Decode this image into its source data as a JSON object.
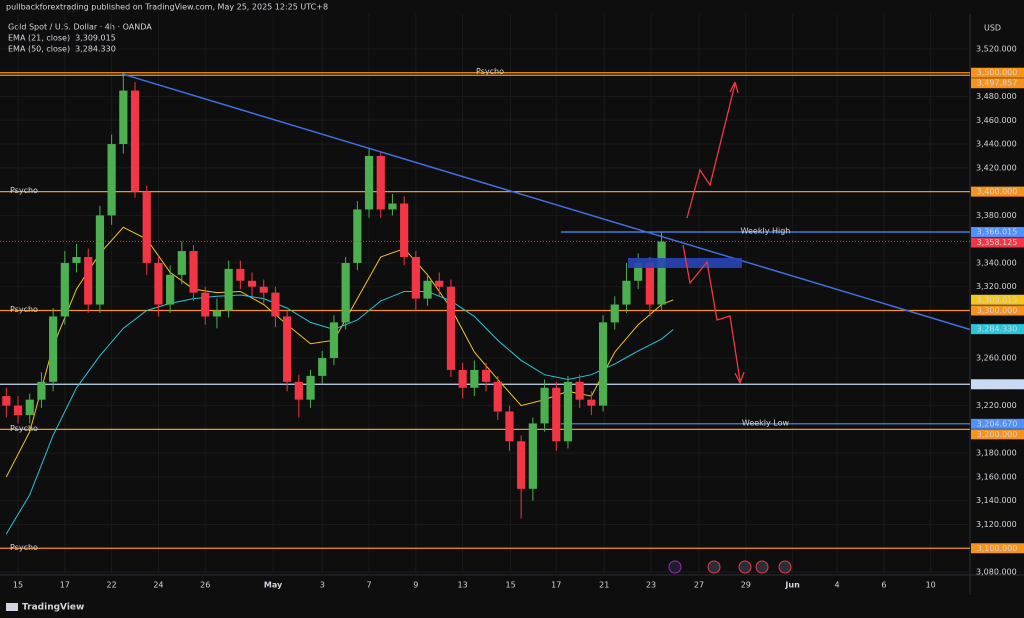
{
  "header": {
    "attribution": "pullbackforextrading published on TradingView.com, May 25, 2025 12:25 UTC+8"
  },
  "footer": {
    "brand": "TradingView"
  },
  "chart_data": {
    "type": "candlestick",
    "title": "Gold Spot / U.S. Dollar · 4h · OANDA",
    "y_axis_label": "USD",
    "up_color": "#4caf50",
    "down_color": "#f23645",
    "grid": true,
    "x": [
      -0.5,
      0,
      0.5,
      1,
      1.5,
      2,
      2.5,
      3,
      3.5,
      4,
      4.5,
      5,
      5.5,
      6,
      6.5,
      7,
      7.5,
      8,
      8.5,
      9,
      9.5,
      10,
      10.5,
      11,
      11.5,
      12,
      12.5,
      13,
      13.5,
      14,
      14.5,
      15,
      15.5,
      16,
      16.5,
      17,
      17.5,
      18,
      18.5,
      19,
      19.5,
      20,
      20.5,
      21,
      21.5,
      22,
      22.5,
      23,
      23.5,
      24,
      24.5,
      25,
      25.5,
      26,
      26.5,
      27,
      27.5
    ],
    "open": [
      3228,
      3220,
      3212,
      3225,
      3240,
      3295,
      3340,
      3345,
      3305,
      3380,
      3440,
      3485,
      3400,
      3340,
      3305,
      3330,
      3350,
      3315,
      3295,
      3300,
      3335,
      3325,
      3320,
      3315,
      3295,
      3240,
      3225,
      3245,
      3260,
      3290,
      3340,
      3385,
      3430,
      3385,
      3390,
      3345,
      3310,
      3325,
      3320,
      3250,
      3235,
      3250,
      3240,
      3215,
      3190,
      3150,
      3205,
      3235,
      3190,
      3240,
      3225,
      3220,
      3290,
      3305,
      3325,
      3340,
      3305
    ],
    "high": [
      3235,
      3228,
      3230,
      3248,
      3302,
      3350,
      3356,
      3352,
      3388,
      3448,
      3500,
      3492,
      3405,
      3346,
      3338,
      3358,
      3355,
      3320,
      3310,
      3342,
      3342,
      3332,
      3326,
      3320,
      3300,
      3246,
      3250,
      3266,
      3296,
      3345,
      3392,
      3436,
      3433,
      3398,
      3396,
      3350,
      3330,
      3332,
      3326,
      3256,
      3258,
      3256,
      3245,
      3220,
      3195,
      3210,
      3242,
      3240,
      3245,
      3246,
      3232,
      3296,
      3312,
      3340,
      3348,
      3345,
      3366
    ],
    "low": [
      3210,
      3205,
      3205,
      3218,
      3232,
      3288,
      3332,
      3298,
      3298,
      3372,
      3432,
      3395,
      3330,
      3295,
      3298,
      3322,
      3308,
      3288,
      3285,
      3294,
      3318,
      3312,
      3306,
      3286,
      3232,
      3210,
      3218,
      3238,
      3254,
      3284,
      3334,
      3378,
      3378,
      3380,
      3338,
      3300,
      3304,
      3312,
      3244,
      3226,
      3228,
      3232,
      3208,
      3182,
      3125,
      3140,
      3198,
      3182,
      3184,
      3218,
      3212,
      3215,
      3284,
      3298,
      3318,
      3295,
      3300
    ],
    "close": [
      3220,
      3212,
      3225,
      3240,
      3295,
      3340,
      3345,
      3305,
      3380,
      3440,
      3485,
      3400,
      3340,
      3305,
      3330,
      3350,
      3315,
      3295,
      3300,
      3335,
      3325,
      3320,
      3315,
      3295,
      3240,
      3225,
      3245,
      3260,
      3290,
      3340,
      3385,
      3430,
      3385,
      3390,
      3345,
      3310,
      3325,
      3320,
      3250,
      3235,
      3250,
      3240,
      3215,
      3190,
      3150,
      3205,
      3235,
      3190,
      3240,
      3225,
      3220,
      3290,
      3305,
      3325,
      3340,
      3305,
      3358
    ],
    "xlim": [
      -0.77,
      40.68
    ],
    "xticks": [
      {
        "value": 0,
        "label": "15"
      },
      {
        "value": 2,
        "label": "17"
      },
      {
        "value": 4,
        "label": "22"
      },
      {
        "value": 6,
        "label": "24"
      },
      {
        "value": 8,
        "label": "26"
      },
      {
        "value": 10.9,
        "label": "May"
      },
      {
        "value": 13,
        "label": "3"
      },
      {
        "value": 15,
        "label": "7"
      },
      {
        "value": 17,
        "label": "9"
      },
      {
        "value": 19,
        "label": "13"
      },
      {
        "value": 21.05,
        "label": "15"
      },
      {
        "value": 23,
        "label": "17"
      },
      {
        "value": 25.05,
        "label": "21"
      },
      {
        "value": 27.05,
        "label": "23"
      },
      {
        "value": 29.1,
        "label": "27"
      },
      {
        "value": 31.1,
        "label": "29"
      },
      {
        "value": 33.1,
        "label": "Jun"
      },
      {
        "value": 35,
        "label": "4"
      },
      {
        "value": 37,
        "label": "6"
      },
      {
        "value": 39,
        "label": "10"
      }
    ],
    "ylim": [
      3077.5,
      3549.4
    ],
    "yticks": [
      {
        "value": 3520,
        "label": "3,520.000"
      },
      {
        "value": 3480,
        "label": "3,480.000"
      },
      {
        "value": 3460,
        "label": "3,460.000"
      },
      {
        "value": 3440,
        "label": "3,440.000"
      },
      {
        "value": 3420,
        "label": "3,420.000"
      },
      {
        "value": 3380,
        "label": "3,380.000"
      },
      {
        "value": 3340,
        "label": "3,340.000"
      },
      {
        "value": 3320,
        "label": "3,320.000"
      },
      {
        "value": 3260,
        "label": "3,260.000"
      },
      {
        "value": 3220,
        "label": "3,220.000"
      },
      {
        "value": 3180,
        "label": "3,180.000"
      },
      {
        "value": 3160,
        "label": "3,160.000"
      },
      {
        "value": 3140,
        "label": "3,140.000"
      },
      {
        "value": 3120,
        "label": "3,120.000"
      },
      {
        "value": 3080,
        "label": "3,080.000"
      }
    ],
    "series": [
      {
        "name": "EMA (21, close)",
        "color": "#f5c518",
        "x": [
          -0.5,
          0.5,
          1.5,
          2.5,
          3.5,
          4.5,
          5.5,
          6.5,
          7.5,
          8.5,
          9.5,
          10.5,
          11.5,
          12.5,
          13.5,
          14.5,
          15.5,
          16.5,
          17.5,
          18.5,
          19.5,
          20.5,
          21.5,
          22.5,
          23.5,
          24.5,
          25.5,
          26.5,
          27.5,
          28
        ],
        "values": [
          3160,
          3198,
          3270,
          3318,
          3348,
          3370,
          3360,
          3332,
          3318,
          3315,
          3316,
          3305,
          3288,
          3272,
          3275,
          3310,
          3345,
          3352,
          3330,
          3302,
          3265,
          3242,
          3220,
          3225,
          3232,
          3228,
          3265,
          3288,
          3305,
          3309
        ],
        "last": {
          "value": 3309.015,
          "label": "3,309.015"
        }
      },
      {
        "name": "EMA (50, close)",
        "color": "#26c6da",
        "x": [
          -0.5,
          0.5,
          1.5,
          2.5,
          3.5,
          4.5,
          5.5,
          6.5,
          7.5,
          8.5,
          9.5,
          10.5,
          11.5,
          12.5,
          13.5,
          14.5,
          15.5,
          16.5,
          17.5,
          18.5,
          19.5,
          20.5,
          21.5,
          22.5,
          23.5,
          24.5,
          25.5,
          26.5,
          27.5,
          28
        ],
        "values": [
          3112,
          3145,
          3195,
          3235,
          3262,
          3285,
          3300,
          3306,
          3310,
          3312,
          3313,
          3310,
          3302,
          3290,
          3284,
          3292,
          3308,
          3316,
          3316,
          3308,
          3295,
          3275,
          3258,
          3246,
          3242,
          3246,
          3255,
          3266,
          3276,
          3284
        ],
        "last": {
          "value": 3284.33,
          "label": "3,284.330"
        }
      }
    ],
    "trendline": {
      "color": "#3f6fe0",
      "x": [
        4.45,
        40.68
      ],
      "values": [
        3499,
        3284
      ]
    },
    "last_price": {
      "value": 3358.125,
      "label": "3,358.125",
      "color": "#f23645"
    },
    "levels": [
      {
        "name": "Psycho",
        "name_align": "center",
        "name_color": "#26c6da",
        "value": 3500,
        "label": "3,500.000",
        "color": "#f7931a"
      },
      {
        "value": 3497.857,
        "label": "3,497.857",
        "color": "#f7931a"
      },
      {
        "name": "Psycho",
        "name_align": "left",
        "name_color": "#26c6da",
        "value": 3400,
        "label": "3,400.000",
        "color": "#f7931a"
      },
      {
        "name": "Weekly High",
        "name_align": "center",
        "name_color": "#4d90fe",
        "value": 3366.015,
        "label": "3,366.015",
        "color": "#4d90fe",
        "x_start": 23.2
      },
      {
        "name": "Psycho",
        "name_align": "left",
        "name_color": "#26c6da",
        "value": 3300,
        "label": "3,300.000",
        "color": "#f7931a"
      },
      {
        "value": 3237.93,
        "label": "3,237.930",
        "color": "#c8daf5"
      },
      {
        "name": "Weekly Low",
        "name_align": "center",
        "name_color": "#4d90fe",
        "value": 3204.67,
        "label": "3,204.670",
        "color": "#4d90fe",
        "x_start": 23.2
      },
      {
        "name": "Psycho",
        "name_align": "left",
        "name_color": "#26c6da",
        "value": 3200,
        "label": "3,200.000",
        "color": "#f7931a"
      },
      {
        "name": "Psycho",
        "name_align": "left",
        "name_color": "#26c6da",
        "value": 3100,
        "label": "3,100.000",
        "color": "#f7931a"
      }
    ]
  }
}
